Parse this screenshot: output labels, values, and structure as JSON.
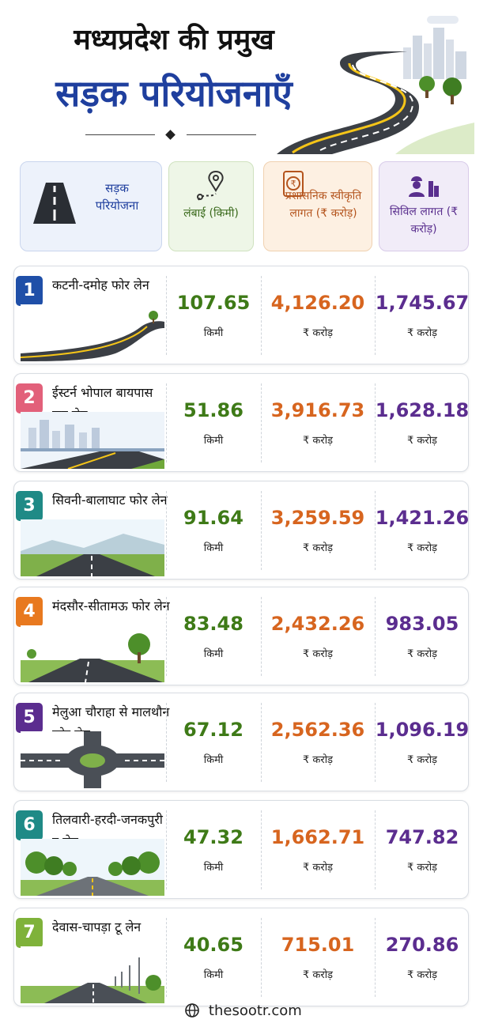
{
  "header": {
    "title_line1": "मध्यप्रदेश की प्रमुख",
    "title_line2": "सड़क परियोजनाएँ"
  },
  "columns": {
    "project": "सड़क परियोजना",
    "length": "लंबाई (किमी)",
    "admin_cost": "प्रशासनिक स्वीकृति लागत (₹ करोड़)",
    "civil_cost": "सिविल लागत (₹ करोड़)"
  },
  "colors": {
    "title_blue": "#1f3f9e",
    "length_green": "#3e7a17",
    "admin_orange": "#d7651f",
    "civil_purple": "#5b2d8f"
  },
  "projects": [
    {
      "num": "1",
      "name": "कटनी-दमोह फोर लेन",
      "length": "107.65",
      "length_unit": "किमी",
      "admin_cost": "4,126.20",
      "admin_unit": "₹ करोड़",
      "civil_cost": "1,745.67",
      "civil_unit": "₹ करोड़",
      "badge_color": "#1f4fa8",
      "scene": "winding-road"
    },
    {
      "num": "2",
      "name": "ईस्टर्न भोपाल बायपास छह लेन",
      "length": "51.86",
      "length_unit": "किमी",
      "admin_cost": "3,916.73",
      "admin_unit": "₹ करोड़",
      "civil_cost": "1,628.18",
      "civil_unit": "₹ करोड़",
      "badge_color": "#e2607a",
      "scene": "city-highway"
    },
    {
      "num": "3",
      "name": "सिवनी-बालाघाट फोर लेन",
      "length": "91.64",
      "length_unit": "किमी",
      "admin_cost": "3,259.59",
      "admin_unit": "₹ करोड़",
      "civil_cost": "1,421.26",
      "civil_unit": "₹ करोड़",
      "badge_color": "#1f8a86",
      "scene": "hill-road"
    },
    {
      "num": "4",
      "name": "मंदसौर-सीतामऊ फोर लेन",
      "length": "83.48",
      "length_unit": "किमी",
      "admin_cost": "2,432.26",
      "admin_unit": "₹ करोड़",
      "civil_cost": "983.05",
      "civil_unit": "₹ करोड़",
      "badge_color": "#e8791f",
      "scene": "tree-road"
    },
    {
      "num": "5",
      "name": "मेलुआ चौराहा से मालथौन फोर लेन",
      "length": "67.12",
      "length_unit": "किमी",
      "admin_cost": "2,562.36",
      "admin_unit": "₹ करोड़",
      "civil_cost": "1,096.19",
      "civil_unit": "₹ करोड़",
      "badge_color": "#5b2d8f",
      "scene": "roundabout"
    },
    {
      "num": "6",
      "name": "तिलवारी-हरदी-जनकपुरी टू लेन",
      "length": "47.32",
      "length_unit": "किमी",
      "admin_cost": "1,662.71",
      "admin_unit": "₹ करोड़",
      "civil_cost": "747.82",
      "civil_unit": "₹ करोड़",
      "badge_color": "#1f8a86",
      "scene": "avenue"
    },
    {
      "num": "7",
      "name": "देवास-चापड़ा टू लेन",
      "length": "40.65",
      "length_unit": "किमी",
      "admin_cost": "715.01",
      "admin_unit": "₹ करोड़",
      "civil_cost": "270.86",
      "civil_unit": "₹ करोड़",
      "badge_color": "#7fb23a",
      "scene": "lamp-road"
    }
  ],
  "footer": {
    "site": "thesootr.com",
    "icon": "globe-icon"
  }
}
